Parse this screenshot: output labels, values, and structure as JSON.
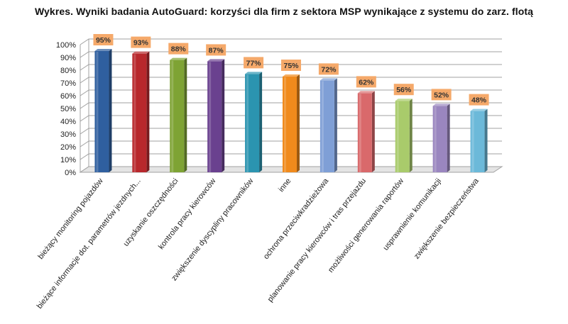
{
  "chart_data": {
    "type": "bar",
    "title": "Wykres. Wyniki badania AutoGuard: korzyści dla firm z sektora MSP wynikające z systemu do zarz. flotą",
    "categories": [
      "bieżący monitoring pojazdów",
      "bieżące informacje dot. parametrów jezdnych...",
      "uzyskanie oszczędności",
      "kontrola pracy kierowców",
      "zwiększenie dyscypliny pracowników",
      "inne",
      "ochrona przeciwkradzieżowa",
      "planowanie pracy kierowców i tras przejazdu",
      "możliwości generowania raportów",
      "usprawnienie komunikacji",
      "zwiększenie bezpieczeństwa"
    ],
    "values": [
      95,
      93,
      88,
      87,
      77,
      75,
      72,
      62,
      56,
      52,
      48
    ],
    "data_labels": [
      "95%",
      "93%",
      "88%",
      "87%",
      "77%",
      "75%",
      "72%",
      "62%",
      "56%",
      "52%",
      "48%"
    ],
    "y_ticks": [
      "0%",
      "10%",
      "20%",
      "30%",
      "40%",
      "50%",
      "60%",
      "70%",
      "80%",
      "90%",
      "100%"
    ],
    "ylim": [
      0,
      100
    ],
    "xlabel": "",
    "ylabel": "",
    "grid": true,
    "legend": "none",
    "bar_colors": [
      "#2f5f9f",
      "#b8282c",
      "#7ea334",
      "#6a418f",
      "#2b94b0",
      "#f08a1c",
      "#7f9fd6",
      "#d9696b",
      "#a9cb6b",
      "#9a86bf",
      "#6cb9d9"
    ],
    "label_fill": "#f5a96a",
    "grid_color": "#a0a0a0"
  }
}
